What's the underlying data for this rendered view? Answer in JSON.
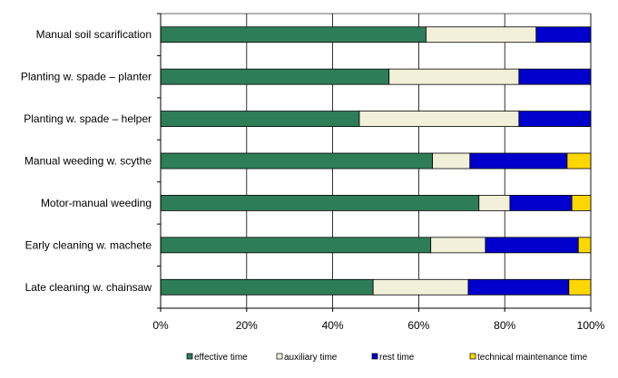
{
  "chart_data": {
    "type": "bar",
    "orientation": "horizontal",
    "stacked": "percent",
    "categories": [
      "Manual soil scarification",
      "Planting w. spade – planter",
      "Planting w. spade – helper",
      "Manual weeding w. scythe",
      "Motor-manual weeding",
      "Early cleaning w. machete",
      "Late cleaning w. chainsaw"
    ],
    "series": [
      {
        "name": "effective time",
        "color": "#2e7d59",
        "values": [
          61.7,
          53.1,
          46.2,
          63.2,
          74.0,
          62.8,
          49.4
        ]
      },
      {
        "name": "auxiliary time",
        "color": "#f2f0d8",
        "values": [
          25.6,
          30.2,
          37.1,
          8.7,
          7.2,
          12.7,
          22.1
        ]
      },
      {
        "name": "rest time",
        "color": "#0000cc",
        "values": [
          12.7,
          16.7,
          16.7,
          22.6,
          14.4,
          21.6,
          23.4
        ]
      },
      {
        "name": "technical maintenance time",
        "color": "#ffd700",
        "values": [
          0,
          0,
          0,
          5.5,
          4.4,
          2.9,
          5.1
        ]
      }
    ],
    "x_ticks": [
      "0%",
      "20%",
      "40%",
      "60%",
      "80%",
      "100%"
    ],
    "xlim": [
      0,
      100
    ],
    "grid": "vertical",
    "legend": "bottom"
  }
}
